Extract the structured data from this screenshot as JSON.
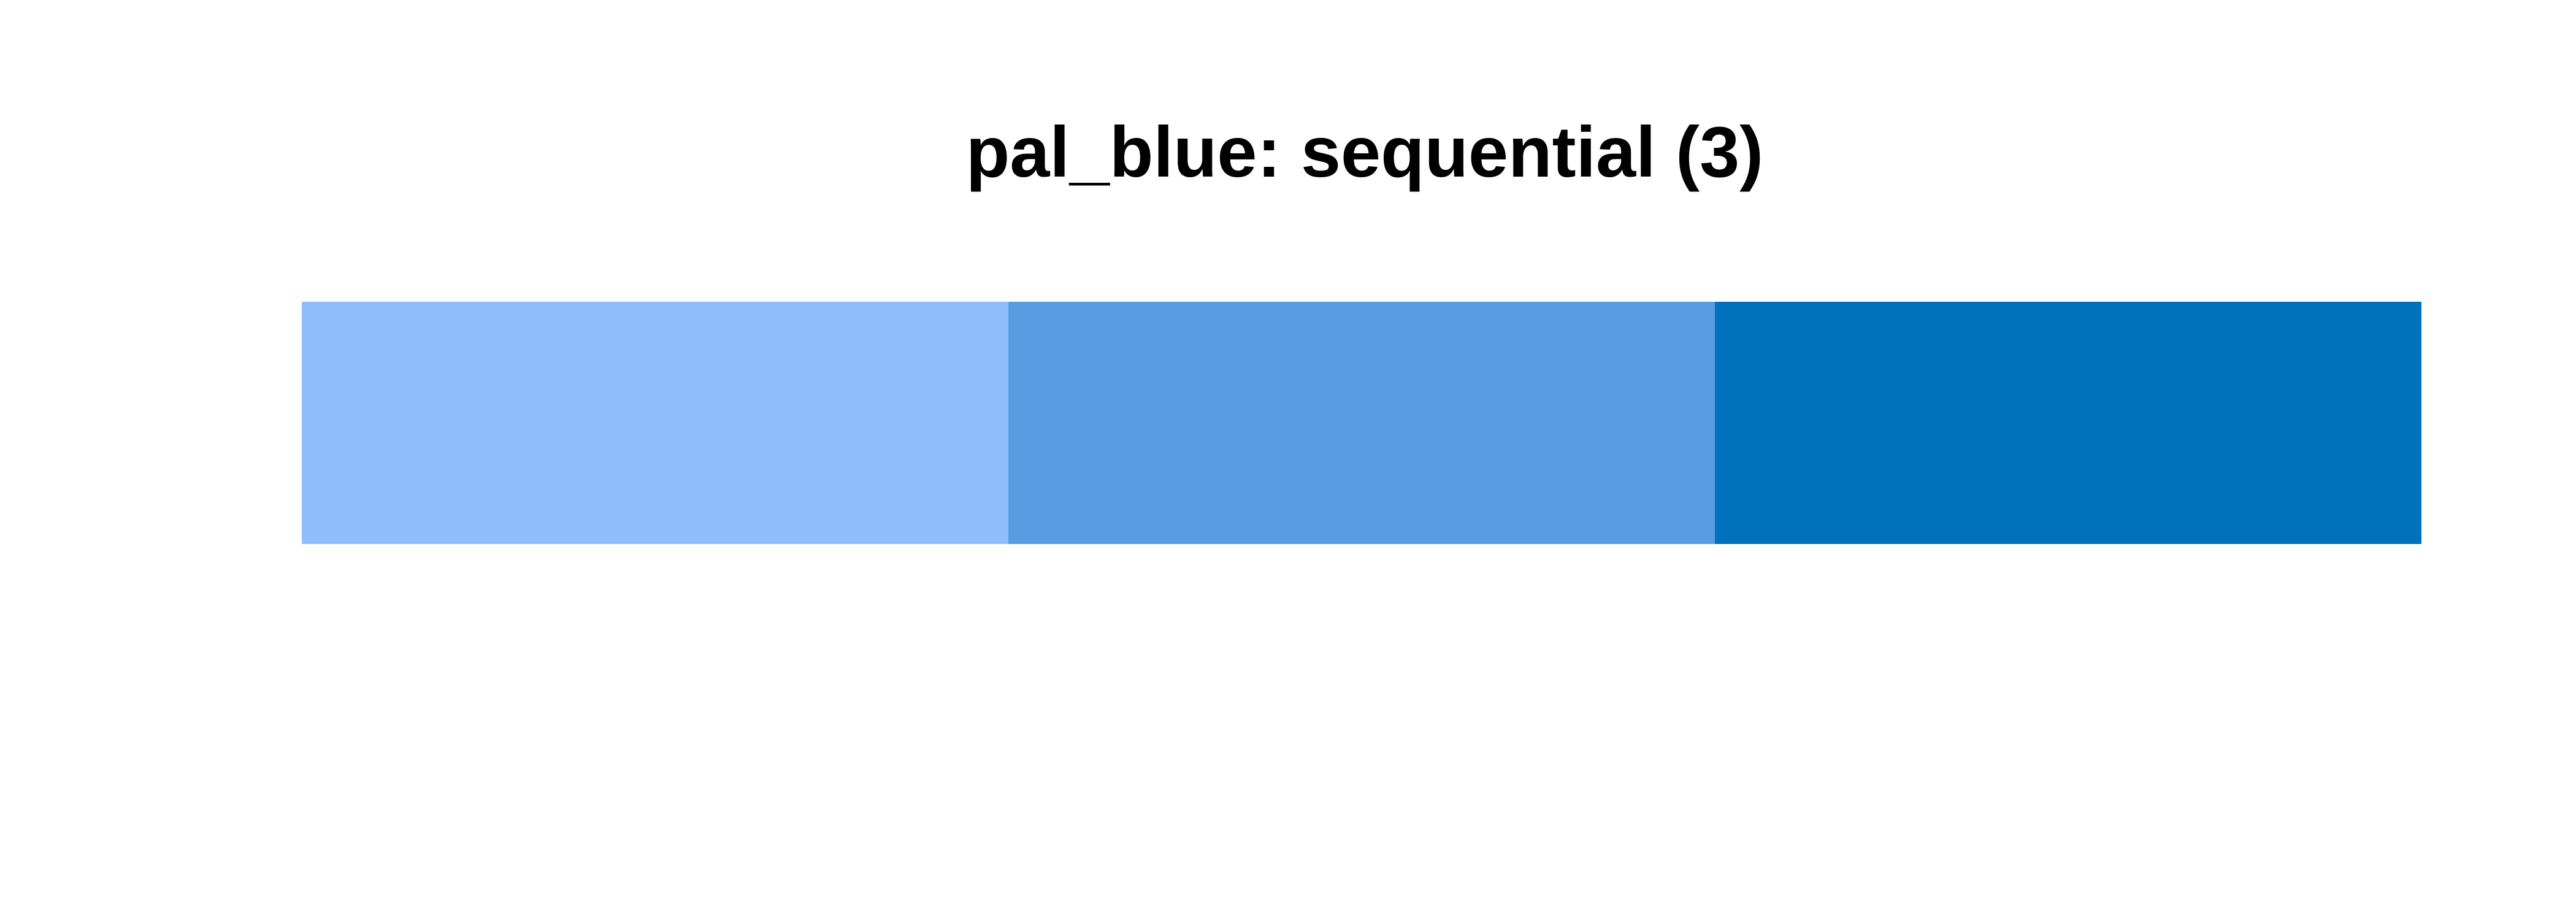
{
  "chart_data": {
    "type": "bar",
    "title": "pal_blue: sequential (3)",
    "palette_name": "pal_blue",
    "scheme": "sequential",
    "n_colors": 3,
    "categories": [
      "",
      "",
      ""
    ],
    "values": [
      1,
      1,
      1
    ],
    "colors": [
      "#8fbeff",
      "#589ce2",
      "#0071bc"
    ],
    "xlabel": "",
    "ylabel": "",
    "axes_visible": false,
    "grid": false,
    "legend": "none"
  }
}
